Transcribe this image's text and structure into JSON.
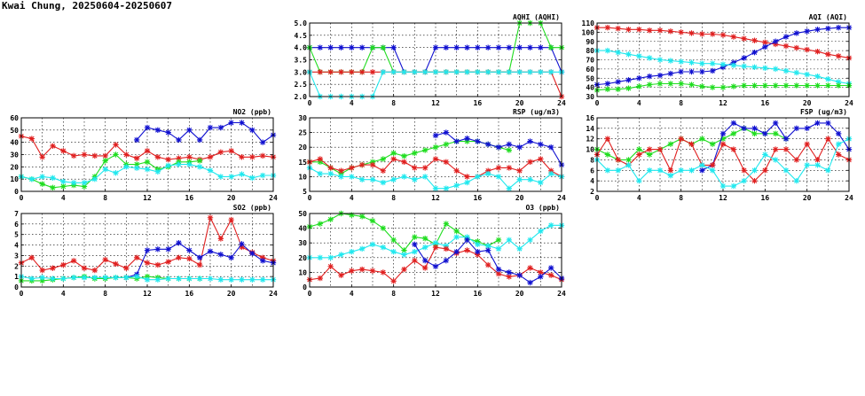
{
  "page": {
    "title": "Kwai Chung, 20250604-20250607"
  },
  "colors": {
    "blue": "#1010d0",
    "green": "#20dd20",
    "red": "#e02020",
    "cyan": "#20e8ee"
  },
  "chart_data": [
    {
      "id": "aqhi",
      "type": "line",
      "title": "AQHI (AQHI)",
      "xlim": [
        0,
        24
      ],
      "xticks": [
        0,
        4,
        8,
        12,
        16,
        20,
        24
      ],
      "ylim": [
        2.0,
        5.0
      ],
      "yticks": [
        "2.0",
        "2.5",
        "3.0",
        "3.5",
        "4.0",
        "4.5",
        "5.0"
      ],
      "grid": true,
      "series": [
        {
          "color": "blue",
          "values": [
            4,
            4,
            4,
            4,
            4,
            4,
            4,
            4,
            4,
            3,
            3,
            3,
            4,
            4,
            4,
            4,
            4,
            4,
            4,
            4,
            4,
            4,
            4,
            4,
            3
          ]
        },
        {
          "color": "green",
          "values": [
            4,
            3,
            3,
            3,
            3,
            3,
            4,
            4,
            3,
            3,
            3,
            3,
            3,
            3,
            3,
            3,
            3,
            3,
            3,
            3,
            5,
            5,
            5,
            4,
            4
          ]
        },
        {
          "color": "red",
          "values": [
            3,
            3,
            3,
            3,
            3,
            3,
            3,
            3,
            3,
            3,
            3,
            3,
            3,
            3,
            3,
            3,
            3,
            3,
            3,
            3,
            3,
            3,
            3,
            3,
            2
          ]
        },
        {
          "color": "cyan",
          "values": [
            3,
            2,
            2,
            2,
            2,
            2,
            2,
            3,
            3,
            3,
            3,
            3,
            3,
            3,
            3,
            3,
            3,
            3,
            3,
            3,
            3,
            3,
            3,
            3,
            3
          ]
        }
      ]
    },
    {
      "id": "aqi",
      "type": "line",
      "title": "AQI (AQI)",
      "xlim": [
        0,
        24
      ],
      "xticks": [
        0,
        4,
        8,
        12,
        16,
        20,
        24
      ],
      "ylim": [
        30,
        110
      ],
      "yticks": [
        "30",
        "40",
        "50",
        "60",
        "70",
        "80",
        "90",
        "100",
        "110"
      ],
      "grid": true,
      "series": [
        {
          "color": "red",
          "values": [
            105,
            105,
            104,
            103,
            103,
            102,
            102,
            101,
            100,
            99,
            98,
            98,
            97,
            95,
            93,
            91,
            89,
            87,
            85,
            83,
            81,
            79,
            76,
            74,
            72
          ]
        },
        {
          "color": "blue",
          "values": [
            43,
            44,
            46,
            48,
            50,
            52,
            53,
            55,
            57,
            57,
            57,
            58,
            62,
            67,
            72,
            78,
            84,
            90,
            95,
            99,
            101,
            103,
            104,
            105,
            105
          ]
        },
        {
          "color": "cyan",
          "values": [
            80,
            80,
            78,
            76,
            74,
            72,
            70,
            69,
            68,
            67,
            66,
            66,
            65,
            64,
            63,
            62,
            61,
            60,
            58,
            56,
            54,
            52,
            49,
            46,
            44
          ]
        },
        {
          "color": "green",
          "values": [
            37,
            38,
            38,
            39,
            41,
            43,
            44,
            44,
            44,
            43,
            41,
            40,
            40,
            41,
            42,
            42,
            42,
            42,
            42,
            42,
            42,
            42,
            42,
            42,
            42
          ]
        }
      ]
    },
    {
      "id": "no2",
      "type": "line",
      "title": "NO2 (ppb)",
      "xlim": [
        0,
        24
      ],
      "xticks": [
        0,
        4,
        8,
        12,
        16,
        20,
        24
      ],
      "ylim": [
        0,
        60
      ],
      "yticks": [
        "0",
        "10",
        "20",
        "30",
        "40",
        "50",
        "60"
      ],
      "grid": true,
      "series": [
        {
          "color": "red",
          "values": [
            45,
            43,
            28,
            37,
            33,
            29,
            30,
            29,
            29,
            38,
            30,
            27,
            33,
            28,
            26,
            27,
            28,
            26,
            28,
            32,
            33,
            28,
            28,
            29,
            28
          ]
        },
        {
          "color": "blue",
          "values": [
            null,
            null,
            null,
            null,
            null,
            null,
            null,
            null,
            null,
            null,
            null,
            42,
            52,
            50,
            48,
            42,
            50,
            42,
            52,
            52,
            56,
            56,
            50,
            40,
            46
          ]
        },
        {
          "color": "green",
          "values": [
            12,
            10,
            6,
            3,
            4,
            5,
            4,
            12,
            25,
            30,
            22,
            22,
            24,
            18,
            20,
            24,
            24,
            25,
            null,
            null,
            null,
            null,
            null,
            null,
            null
          ]
        },
        {
          "color": "cyan",
          "values": [
            12,
            10,
            12,
            11,
            8,
            7,
            7,
            10,
            18,
            15,
            20,
            19,
            18,
            16,
            21,
            22,
            22,
            20,
            17,
            12,
            12,
            14,
            11,
            13,
            13
          ]
        }
      ]
    },
    {
      "id": "rsp",
      "type": "line",
      "title": "RSP (ug/m3)",
      "xlim": [
        0,
        24
      ],
      "xticks": [
        0,
        4,
        8,
        12,
        16,
        20,
        24
      ],
      "ylim": [
        5,
        30
      ],
      "yticks": [
        "5",
        "10",
        "15",
        "20",
        "25",
        "30"
      ],
      "grid": true,
      "series": [
        {
          "color": "green",
          "values": [
            15,
            15,
            13,
            11,
            13,
            14,
            15,
            16,
            18,
            17,
            18,
            19,
            20,
            21,
            22,
            22,
            22,
            21,
            20,
            19,
            null,
            null,
            null,
            null,
            null
          ]
        },
        {
          "color": "blue",
          "values": [
            null,
            null,
            null,
            null,
            null,
            null,
            null,
            null,
            null,
            null,
            null,
            null,
            24,
            25,
            22,
            23,
            22,
            21,
            20,
            21,
            20,
            22,
            21,
            20,
            14
          ]
        },
        {
          "color": "red",
          "values": [
            15,
            16,
            13,
            12,
            13,
            14,
            14,
            12,
            16,
            15,
            13,
            13,
            16,
            15,
            12,
            10,
            10,
            12,
            13,
            13,
            12,
            15,
            16,
            12,
            10
          ]
        },
        {
          "color": "cyan",
          "values": [
            13,
            11,
            11,
            10,
            10,
            9,
            9,
            8,
            9,
            10,
            9,
            10,
            6,
            6,
            7,
            8,
            10,
            11,
            10,
            6,
            9,
            9,
            8,
            11,
            10
          ]
        }
      ]
    },
    {
      "id": "fsp",
      "type": "line",
      "title": "FSP (ug/m3)",
      "xlim": [
        0,
        24
      ],
      "xticks": [
        0,
        4,
        8,
        12,
        16,
        20,
        24
      ],
      "ylim": [
        2,
        16
      ],
      "yticks": [
        "2",
        "4",
        "6",
        "8",
        "10",
        "12",
        "14",
        "16"
      ],
      "grid": true,
      "series": [
        {
          "color": "green",
          "values": [
            10,
            9,
            8,
            8,
            10,
            9,
            10,
            11,
            12,
            11,
            12,
            11,
            12,
            13,
            14,
            13,
            13,
            13,
            12,
            null,
            null,
            null,
            null,
            null,
            null
          ]
        },
        {
          "color": "blue",
          "values": [
            null,
            null,
            null,
            null,
            null,
            null,
            null,
            null,
            null,
            null,
            6,
            7,
            13,
            15,
            14,
            14,
            13,
            15,
            12,
            14,
            14,
            15,
            15,
            13,
            10
          ]
        },
        {
          "color": "red",
          "values": [
            9,
            12,
            8,
            7,
            9,
            10,
            10,
            6,
            12,
            11,
            7,
            7,
            11,
            10,
            6,
            4,
            6,
            10,
            10,
            8,
            11,
            8,
            12,
            9,
            8
          ]
        },
        {
          "color": "cyan",
          "values": [
            8,
            6,
            6,
            7,
            4,
            6,
            6,
            5,
            6,
            6,
            7,
            6,
            3,
            3,
            4,
            6,
            9,
            8,
            6,
            4,
            7,
            7,
            6,
            11,
            12
          ]
        }
      ]
    },
    {
      "id": "so2",
      "type": "line",
      "title": "SO2 (ppb)",
      "xlim": [
        0,
        24
      ],
      "xticks": [
        0,
        4,
        8,
        12,
        16,
        20,
        24
      ],
      "ylim": [
        0,
        7
      ],
      "yticks": [
        "0",
        "1",
        "2",
        "3",
        "4",
        "5",
        "6",
        "7"
      ],
      "grid": true,
      "series": [
        {
          "color": "red",
          "values": [
            2.3,
            2.8,
            1.6,
            1.8,
            2.1,
            2.5,
            1.8,
            1.6,
            2.6,
            2.2,
            1.8,
            2.8,
            2.3,
            2.1,
            2.4,
            2.8,
            2.7,
            2.1,
            6.6,
            4.6,
            6.4,
            3.8,
            3.3,
            2.8,
            2.5
          ]
        },
        {
          "color": "blue",
          "values": [
            null,
            null,
            null,
            null,
            null,
            null,
            null,
            null,
            null,
            null,
            0.9,
            1.2,
            3.5,
            3.6,
            3.6,
            4.2,
            3.5,
            2.8,
            3.4,
            3.1,
            2.8,
            4.1,
            3.2,
            2.5,
            2.3
          ]
        },
        {
          "color": "green",
          "values": [
            0.6,
            0.6,
            0.6,
            0.7,
            0.8,
            0.9,
            1.0,
            0.8,
            0.8,
            0.9,
            0.9,
            0.8,
            1.0,
            0.9,
            0.8,
            0.8,
            0.8,
            0.8,
            null,
            null,
            null,
            null,
            null,
            null,
            null
          ]
        },
        {
          "color": "cyan",
          "values": [
            1.0,
            0.8,
            0.9,
            0.8,
            0.8,
            0.9,
            0.9,
            0.9,
            0.9,
            0.9,
            0.9,
            1.0,
            0.7,
            0.7,
            0.8,
            0.8,
            0.8,
            0.8,
            0.8,
            0.7,
            0.7,
            0.7,
            0.7,
            0.7,
            0.7
          ]
        }
      ]
    },
    {
      "id": "o3",
      "type": "line",
      "title": "O3 (ppb)",
      "xlim": [
        0,
        24
      ],
      "xticks": [
        0,
        4,
        8,
        12,
        16,
        20,
        24
      ],
      "ylim": [
        0,
        50
      ],
      "yticks": [
        "0",
        "10",
        "20",
        "30",
        "40",
        "50"
      ],
      "grid": true,
      "series": [
        {
          "color": "green",
          "values": [
            41,
            43,
            46,
            50,
            49,
            48,
            45,
            40,
            32,
            25,
            34,
            33,
            29,
            43,
            38,
            33,
            31,
            28,
            32,
            null,
            null,
            null,
            null,
            null,
            null
          ]
        },
        {
          "color": "cyan",
          "values": [
            20,
            20,
            20,
            22,
            24,
            26,
            29,
            27,
            24,
            22,
            24,
            27,
            30,
            28,
            34,
            34,
            29,
            28,
            26,
            32,
            26,
            32,
            38,
            42,
            42
          ]
        },
        {
          "color": "red",
          "values": [
            5,
            6,
            14,
            8,
            11,
            12,
            11,
            10,
            4,
            12,
            18,
            13,
            27,
            26,
            23,
            25,
            22,
            15,
            9,
            7,
            8,
            13,
            10,
            8,
            5
          ]
        },
        {
          "color": "blue",
          "values": [
            null,
            null,
            null,
            null,
            null,
            null,
            null,
            null,
            null,
            null,
            29,
            18,
            14,
            18,
            24,
            32,
            24,
            25,
            12,
            10,
            8,
            3,
            7,
            13,
            6
          ]
        }
      ]
    }
  ]
}
